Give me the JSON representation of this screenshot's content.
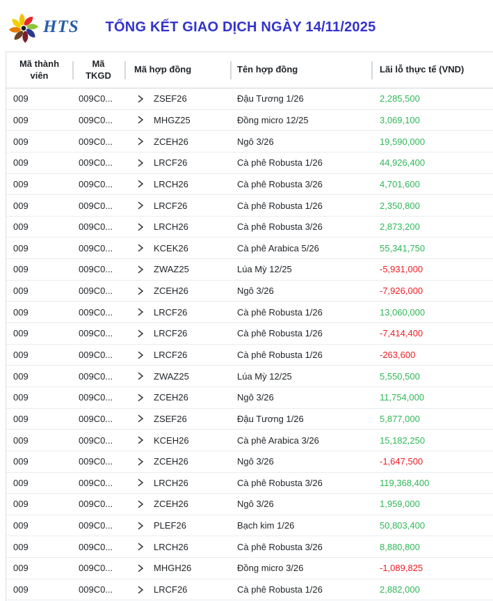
{
  "header": {
    "logo_text": "HTS",
    "title": "TỔNG KẾT GIAO DỊCH NGÀY 14/11/2025"
  },
  "colors": {
    "title": "#3333cc",
    "profit": "#2fb757",
    "loss": "#ed1c24",
    "logo_petals": [
      "#f2c20a",
      "#e8262d",
      "#8cc63f",
      "#2b3990",
      "#7a1e2c",
      "#6b4423",
      "#e87e04",
      "#f5d000"
    ]
  },
  "icons": {
    "row_expander": "chevron-right-icon",
    "logo": "hts-pinwheel-logo"
  },
  "table": {
    "columns": [
      "Mã thành viên",
      "Mã TKGD",
      "Mã hợp đồng",
      "Tên hợp đồng",
      "Lãi lỗ thực tế (VND)"
    ],
    "rows": [
      {
        "member": "009",
        "account": "009C0...",
        "code": "ZSEF26",
        "name": "Đậu Tương 1/26",
        "pnl": "2,285,500"
      },
      {
        "member": "009",
        "account": "009C0...",
        "code": "MHGZ25",
        "name": "Đồng micro 12/25",
        "pnl": "3,069,100"
      },
      {
        "member": "009",
        "account": "009C0...",
        "code": "ZCEH26",
        "name": "Ngô 3/26",
        "pnl": "19,590,000"
      },
      {
        "member": "009",
        "account": "009C0...",
        "code": "LRCF26",
        "name": "Cà phê Robusta 1/26",
        "pnl": "44,926,400"
      },
      {
        "member": "009",
        "account": "009C0...",
        "code": "LRCH26",
        "name": "Cà phê Robusta 3/26",
        "pnl": "4,701,600"
      },
      {
        "member": "009",
        "account": "009C0...",
        "code": "LRCF26",
        "name": "Cà phê Robusta 1/26",
        "pnl": "2,350,800"
      },
      {
        "member": "009",
        "account": "009C0...",
        "code": "LRCH26",
        "name": "Cà phê Robusta 3/26",
        "pnl": "2,873,200"
      },
      {
        "member": "009",
        "account": "009C0...",
        "code": "KCEK26",
        "name": "Cà phê Arabica 5/26",
        "pnl": "55,341,750"
      },
      {
        "member": "009",
        "account": "009C0...",
        "code": "ZWAZ25",
        "name": "Lúa Mỳ 12/25",
        "pnl": "-5,931,000"
      },
      {
        "member": "009",
        "account": "009C0...",
        "code": "ZCEH26",
        "name": "Ngô 3/26",
        "pnl": "-7,926,000"
      },
      {
        "member": "009",
        "account": "009C0...",
        "code": "LRCF26",
        "name": "Cà phê Robusta 1/26",
        "pnl": "13,060,000"
      },
      {
        "member": "009",
        "account": "009C0...",
        "code": "LRCF26",
        "name": "Cà phê Robusta 1/26",
        "pnl": "-7,414,400"
      },
      {
        "member": "009",
        "account": "009C0...",
        "code": "LRCF26",
        "name": "Cà phê Robusta 1/26",
        "pnl": "-263,600"
      },
      {
        "member": "009",
        "account": "009C0...",
        "code": "ZWAZ25",
        "name": "Lúa Mỳ 12/25",
        "pnl": "5,550,500"
      },
      {
        "member": "009",
        "account": "009C0...",
        "code": "ZCEH26",
        "name": "Ngô 3/26",
        "pnl": "11,754,000"
      },
      {
        "member": "009",
        "account": "009C0...",
        "code": "ZSEF26",
        "name": "Đậu Tương 1/26",
        "pnl": "5,877,000"
      },
      {
        "member": "009",
        "account": "009C0...",
        "code": "KCEH26",
        "name": "Cà phê Arabica 3/26",
        "pnl": "15,182,250"
      },
      {
        "member": "009",
        "account": "009C0...",
        "code": "ZCEH26",
        "name": "Ngô 3/26",
        "pnl": "-1,647,500"
      },
      {
        "member": "009",
        "account": "009C0...",
        "code": "LRCH26",
        "name": "Cà phê Robusta 3/26",
        "pnl": "119,368,400"
      },
      {
        "member": "009",
        "account": "009C0...",
        "code": "ZCEH26",
        "name": "Ngô 3/26",
        "pnl": "1,959,000"
      },
      {
        "member": "009",
        "account": "009C0...",
        "code": "PLEF26",
        "name": "Bạch kim 1/26",
        "pnl": "50,803,400"
      },
      {
        "member": "009",
        "account": "009C0...",
        "code": "LRCH26",
        "name": "Cà phê Robusta 3/26",
        "pnl": "8,880,800"
      },
      {
        "member": "009",
        "account": "009C0...",
        "code": "MHGH26",
        "name": "Đồng micro 3/26",
        "pnl": "-1,089,825"
      },
      {
        "member": "009",
        "account": "009C0...",
        "code": "LRCF26",
        "name": "Cà phê Robusta 1/26",
        "pnl": "2,882,000"
      }
    ]
  }
}
